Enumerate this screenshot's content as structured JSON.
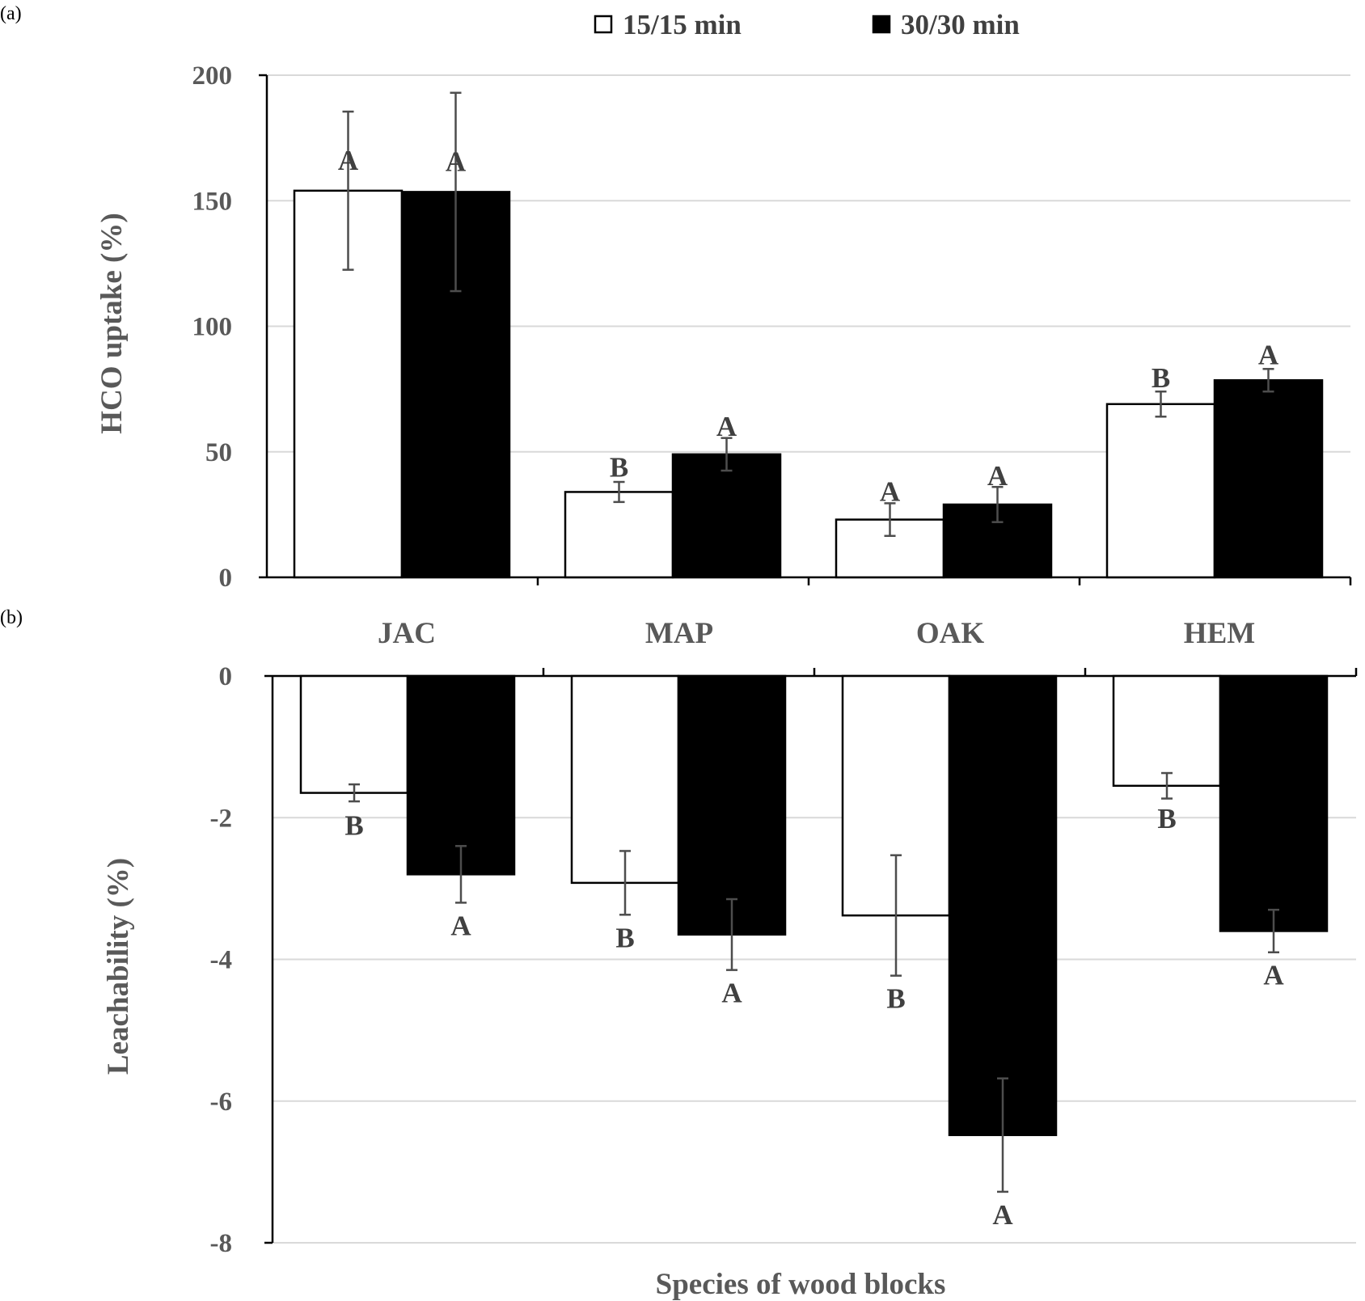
{
  "legend": {
    "items": [
      {
        "label": "15/15 min",
        "color": "#ffffff"
      },
      {
        "label": "30/30 min",
        "color": "#000000"
      }
    ]
  },
  "chart_data": [
    {
      "panel": "(a)",
      "type": "bar",
      "categories": [
        "JAC",
        "MAP",
        "OAK",
        "HEM"
      ],
      "ylabel": "HCO uptake (%)",
      "xlabel": "",
      "ylim": [
        0,
        200
      ],
      "yticks": [
        0,
        50,
        100,
        150,
        200
      ],
      "grid": true,
      "series": [
        {
          "name": "15/15 min",
          "color": "#ffffff",
          "values": [
            154,
            34,
            23,
            69
          ],
          "errors": [
            31.5,
            4,
            6.5,
            5
          ],
          "letters": [
            "A",
            "B",
            "A",
            "B"
          ]
        },
        {
          "name": "30/30 min",
          "color": "#000000",
          "values": [
            153.5,
            49,
            29,
            78.5
          ],
          "errors": [
            39.5,
            6.5,
            7,
            4.5
          ],
          "letters": [
            "A",
            "A",
            "A",
            "A"
          ]
        }
      ]
    },
    {
      "panel": "(b)",
      "type": "bar",
      "categories": [
        "JAC",
        "MAP",
        "OAK",
        "HEM"
      ],
      "ylabel": "Leachability (%)",
      "xlabel": "Species of wood blocks",
      "ylim": [
        -8,
        0
      ],
      "yticks": [
        0,
        -2,
        -4,
        -6,
        -8
      ],
      "grid": true,
      "series": [
        {
          "name": "15/15 min",
          "color": "#ffffff",
          "values": [
            -1.65,
            -2.92,
            -3.38,
            -1.55
          ],
          "errors": [
            0.12,
            0.45,
            0.85,
            0.18
          ],
          "letters": [
            "B",
            "B",
            "B",
            "B"
          ]
        },
        {
          "name": "30/30 min",
          "color": "#000000",
          "values": [
            -2.8,
            -3.65,
            -6.48,
            -3.6
          ],
          "errors": [
            0.4,
            0.5,
            0.8,
            0.3
          ],
          "letters": [
            "A",
            "A",
            "A",
            "A"
          ]
        }
      ]
    }
  ]
}
